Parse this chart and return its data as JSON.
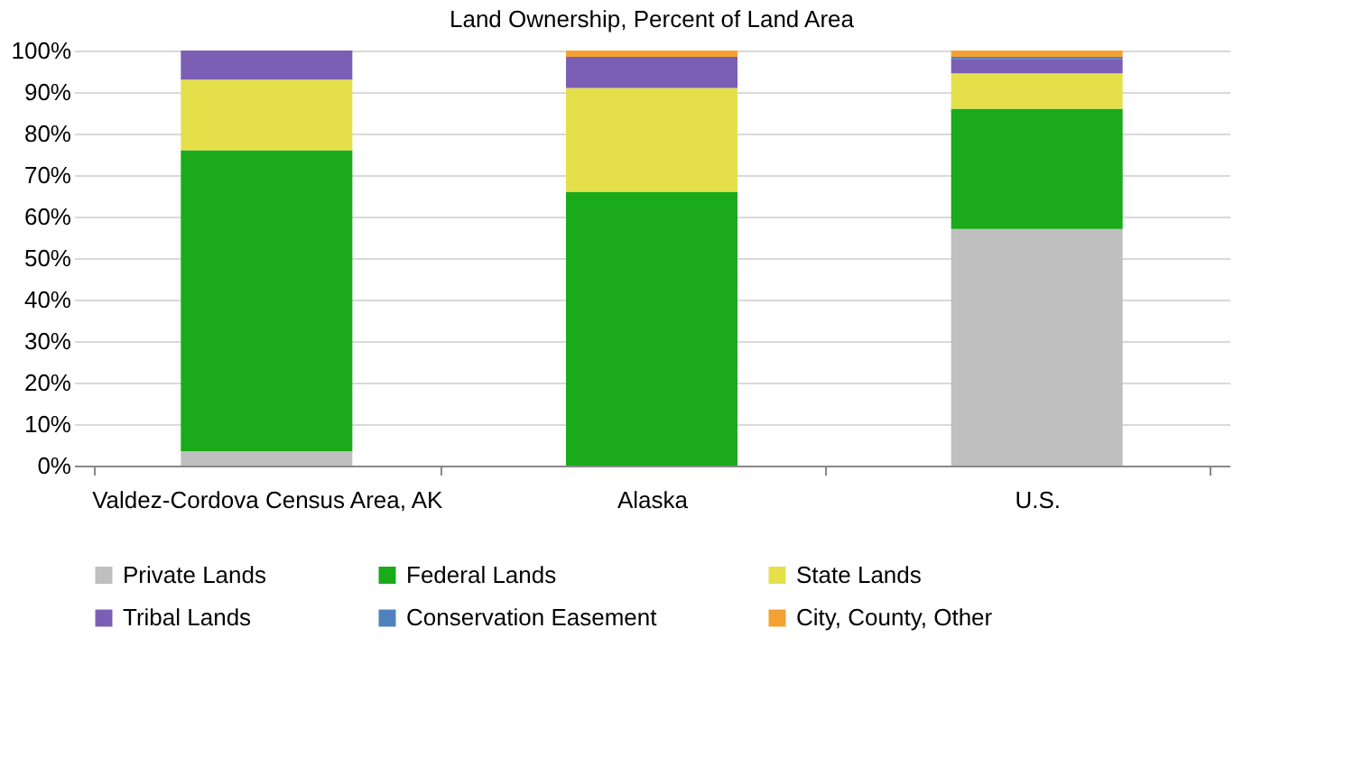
{
  "chart_data": {
    "type": "bar",
    "title": "Land Ownership, Percent of Land Area",
    "stacked": true,
    "categories": [
      "Valdez-Cordova Census Area, AK",
      "Alaska",
      "U.S."
    ],
    "series": [
      {
        "name": "Private Lands",
        "color": "#bfbfbf",
        "values": [
          3.5,
          0,
          57
        ]
      },
      {
        "name": "Federal Lands",
        "color": "#1aaa1a",
        "values": [
          72.5,
          66,
          29
        ]
      },
      {
        "name": "State Lands",
        "color": "#e5e04a",
        "values": [
          17,
          25,
          8.5
        ]
      },
      {
        "name": "Tribal Lands",
        "color": "#7a5fb5",
        "values": [
          7,
          7.5,
          3.5
        ]
      },
      {
        "name": "Conservation Easement",
        "color": "#4f81bd",
        "values": [
          0,
          0,
          0.5
        ]
      },
      {
        "name": "City, County, Other",
        "color": "#f5a033",
        "values": [
          0,
          1.5,
          1.5
        ]
      }
    ],
    "ylim": [
      0,
      100
    ],
    "yticks": [
      {
        "value": 0,
        "label": "0%"
      },
      {
        "value": 10,
        "label": "10%"
      },
      {
        "value": 20,
        "label": "20%"
      },
      {
        "value": 30,
        "label": "30%"
      },
      {
        "value": 40,
        "label": "40%"
      },
      {
        "value": 50,
        "label": "50%"
      },
      {
        "value": 60,
        "label": "60%"
      },
      {
        "value": 70,
        "label": "70%"
      },
      {
        "value": 80,
        "label": "80%"
      },
      {
        "value": 90,
        "label": "90%"
      },
      {
        "value": 100,
        "label": "100%"
      }
    ],
    "grid": "y",
    "legend": "bottom"
  }
}
